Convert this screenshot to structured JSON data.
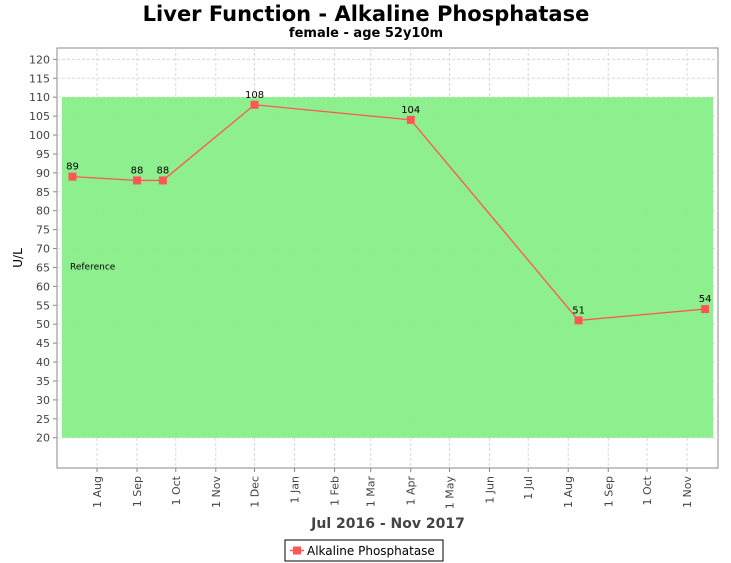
{
  "chart_data": {
    "type": "line",
    "title": "Liver Function - Alkaline Phosphatase",
    "subtitle": "female - age 52y10m",
    "xlabel": "Jul 2016 - Nov 2017",
    "ylabel": "U/L",
    "ylim": [
      12,
      123
    ],
    "y_ticks": [
      20,
      25,
      30,
      35,
      40,
      45,
      50,
      55,
      60,
      65,
      70,
      75,
      80,
      85,
      90,
      95,
      100,
      105,
      110,
      115,
      120
    ],
    "x_range": [
      "2016-07-01",
      "2017-11-25"
    ],
    "x_ticks": [
      {
        "date": "2016-08-01",
        "label": "1 Aug"
      },
      {
        "date": "2016-09-01",
        "label": "1 Sep"
      },
      {
        "date": "2016-10-01",
        "label": "1 Oct"
      },
      {
        "date": "2016-11-01",
        "label": "1 Nov"
      },
      {
        "date": "2016-12-01",
        "label": "1 Dec"
      },
      {
        "date": "2017-01-01",
        "label": "1 Jan"
      },
      {
        "date": "2017-02-01",
        "label": "1 Feb"
      },
      {
        "date": "2017-03-01",
        "label": "1 Mar"
      },
      {
        "date": "2017-04-01",
        "label": "1 Apr"
      },
      {
        "date": "2017-05-01",
        "label": "1 May"
      },
      {
        "date": "2017-06-01",
        "label": "1 Jun"
      },
      {
        "date": "2017-07-01",
        "label": "1 Jul"
      },
      {
        "date": "2017-08-01",
        "label": "1 Aug"
      },
      {
        "date": "2017-09-01",
        "label": "1 Sep"
      },
      {
        "date": "2017-10-01",
        "label": "1 Oct"
      },
      {
        "date": "2017-11-01",
        "label": "1 Nov"
      }
    ],
    "reference_band": {
      "label": "Reference",
      "low": 20,
      "high": 110,
      "color": "#88ee88"
    },
    "grid": true,
    "legend_position": "bottom",
    "series": [
      {
        "name": "Alkaline Phosphatase",
        "color": "#ff5555",
        "points": [
          {
            "x": "2016-07-13",
            "y": 89
          },
          {
            "x": "2016-09-01",
            "y": 88
          },
          {
            "x": "2016-09-21",
            "y": 88
          },
          {
            "x": "2016-12-01",
            "y": 108
          },
          {
            "x": "2017-04-01",
            "y": 104
          },
          {
            "x": "2017-08-09",
            "y": 51
          },
          {
            "x": "2017-11-15",
            "y": 54
          }
        ]
      }
    ]
  }
}
